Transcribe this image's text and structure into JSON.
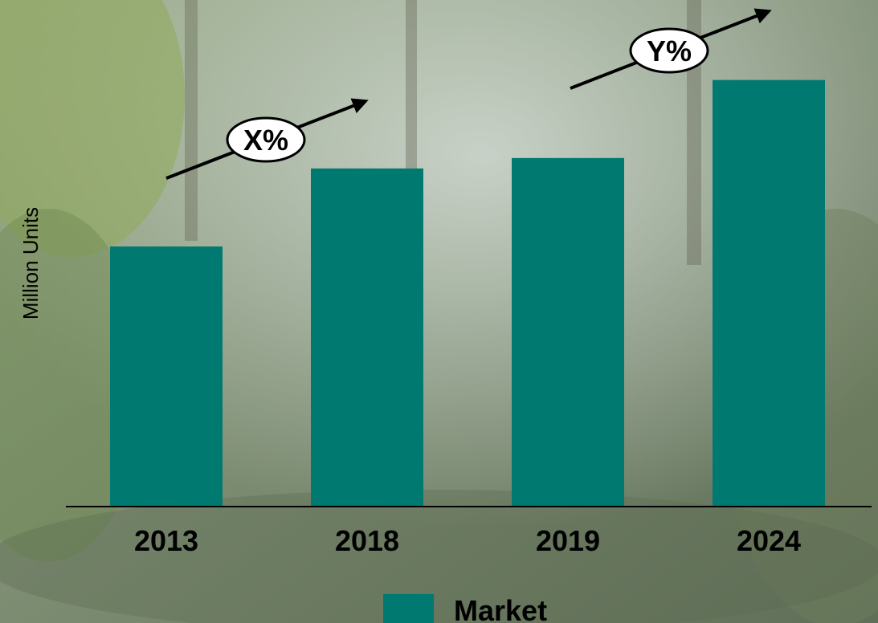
{
  "chart_data": {
    "type": "bar",
    "categories": [
      "2013",
      "2018",
      "2019",
      "2024"
    ],
    "series": [
      {
        "name": "Market",
        "values": [
          100,
          130,
          134,
          164
        ]
      }
    ],
    "xlabel": "",
    "ylabel": "Million Units",
    "grid": false,
    "y_axis_ticks_shown": false,
    "legend": {
      "placement": "bottom-center",
      "entries": [
        "Market"
      ]
    },
    "annotations": [
      {
        "text": "X%",
        "from": "2013",
        "to": "2018"
      },
      {
        "text": "Y%",
        "from": "2019",
        "to": "2024"
      }
    ],
    "colors": {
      "bar": "#007a70",
      "axis": "#000000",
      "background": "#7d8f6f"
    }
  }
}
